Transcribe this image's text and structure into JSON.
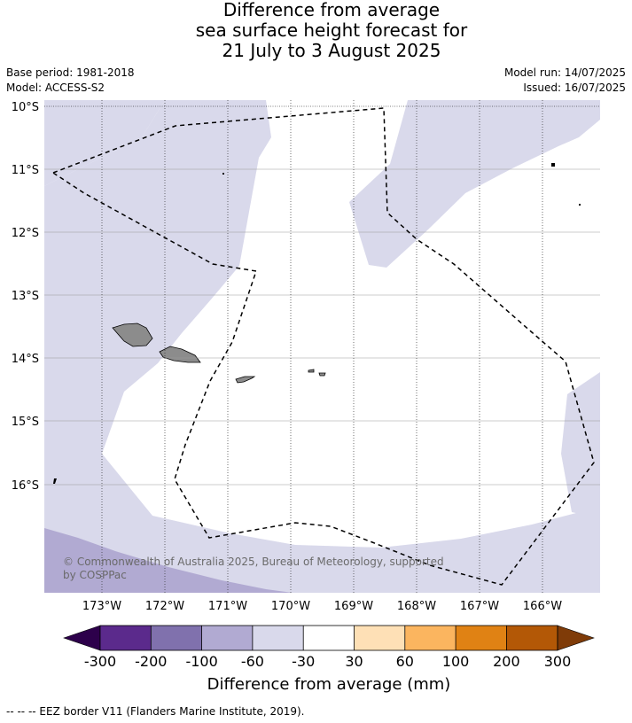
{
  "title": {
    "line1": "Difference from average",
    "line2": "sea surface height forecast for",
    "line3": "21 July to 3 August 2025"
  },
  "meta": {
    "base_period": "Base period: 1981-2018",
    "model": "Model: ACCESS-S2",
    "model_run": "Model run: 14/07/2025",
    "issued": "Issued: 16/07/2025"
  },
  "map": {
    "lat_labels": [
      "10°S",
      "11°S",
      "12°S",
      "13°S",
      "14°S",
      "15°S",
      "16°S"
    ],
    "lon_labels": [
      "173°W",
      "172°W",
      "171°W",
      "170°W",
      "169°W",
      "168°W",
      "167°W",
      "166°W"
    ],
    "copyright_line1": "© Commonwealth of Australia 2025, Bureau of Meteorology, supported",
    "copyright_line2": "by COSPPac"
  },
  "colorbar": {
    "ticks": [
      "-300",
      "-200",
      "-100",
      "-60",
      "-30",
      "30",
      "60",
      "100",
      "200",
      "300"
    ],
    "label": "Difference from average (mm)",
    "colors": [
      "#5b2a8c",
      "#8071ad",
      "#b1aad2",
      "#d9d9eb",
      "#ffffff",
      "#fee0b6",
      "#fbb55f",
      "#e08214",
      "#b35806"
    ],
    "low_extend_color": "#2d004b",
    "high_extend_color": "#7f3b08"
  },
  "footnote": "-- -- -- EEZ border V11 (Flanders Marine Institute, 2019)."
}
